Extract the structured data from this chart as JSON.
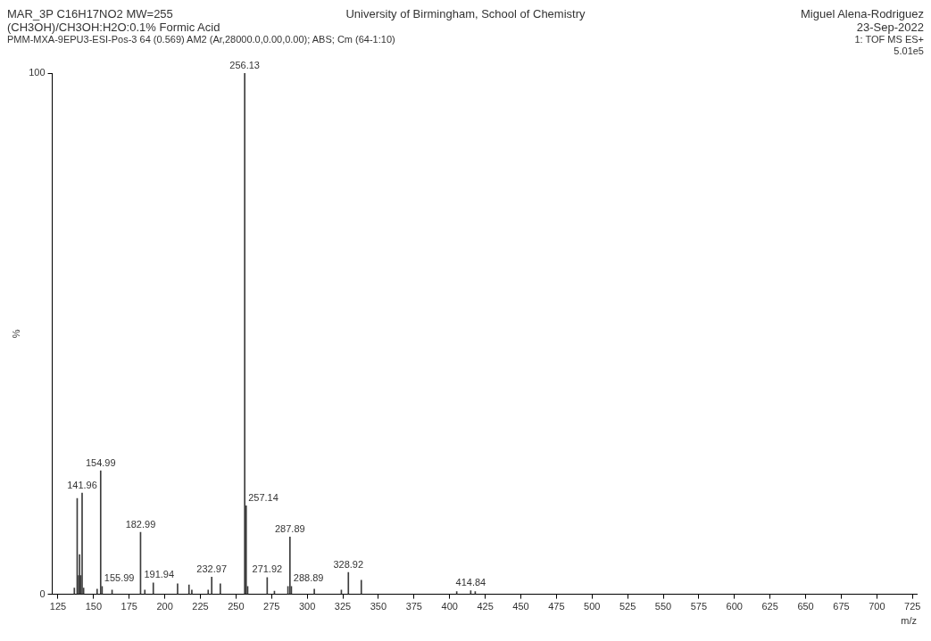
{
  "chart_data": {
    "type": "bar",
    "title": "MAR_3P C16H17NO2 MW=255",
    "subtitle": "(CH3OH)/CH3OH:H2O:0.1% Formic Acid",
    "xlabel": "m/z",
    "ylabel": "%",
    "x": [
      136.5,
      138.5,
      139.5,
      140.2,
      140.8,
      141.96,
      143,
      152.5,
      154.99,
      155.99,
      163,
      182.99,
      186,
      191.94,
      209,
      217,
      219,
      230.5,
      232.97,
      239,
      256.13,
      257.14,
      258.2,
      271.92,
      277,
      286.5,
      287.89,
      288.89,
      305,
      324,
      328.92,
      338,
      405,
      414.84,
      418
    ],
    "series": [
      {
        "color": "#3c3c3c",
        "values": [
          1.2,
          18.4,
          3.6,
          7.6,
          3.6,
          19.4,
          1.2,
          1.0,
          23.7,
          1.5,
          0.8,
          11.9,
          0.8,
          2.2,
          2.0,
          1.8,
          0.8,
          0.8,
          3.3,
          2.0,
          100,
          17,
          1.5,
          3.2,
          0.6,
          1.5,
          11,
          1.5,
          1.0,
          0.8,
          4.2,
          2.7,
          0.5,
          0.7,
          0.5
        ]
      }
    ],
    "xlim": [
      121,
      728
    ],
    "xticks": [
      125,
      150,
      175,
      200,
      225,
      250,
      275,
      300,
      325,
      350,
      375,
      400,
      425,
      450,
      475,
      500,
      525,
      550,
      575,
      600,
      625,
      650,
      675,
      700,
      725
    ],
    "ylim": [
      0,
      100
    ],
    "yticks": [
      0,
      100
    ],
    "grid": false,
    "legend": false,
    "annotations": [
      "University of Birmingham, School of Chemistry",
      "Miguel Alena-Rodriguez",
      "23-Sep-2022",
      "PMM-MXA-9EPU3-ESI-Pos-3 64 (0.569) AM2 (Ar,28000.0,0.00,0.00); ABS; Cm (64-1:10)",
      "1: TOF MS ES+",
      "5.01e5",
      {
        "text": "141.96",
        "x": 141.96,
        "y": 19.4
      },
      {
        "text": "154.99",
        "x": 154.99,
        "y": 23.7
      },
      {
        "text": "155.99",
        "x": 155.99,
        "y": 1.5
      },
      {
        "text": "182.99",
        "x": 182.99,
        "y": 11.9
      },
      {
        "text": "191.94",
        "x": 191.94,
        "y": 2.2
      },
      {
        "text": "232.97",
        "x": 232.97,
        "y": 3.3
      },
      {
        "text": "256.13",
        "x": 256.13,
        "y": 100
      },
      {
        "text": "257.14",
        "x": 257.14,
        "y": 17
      },
      {
        "text": "271.92",
        "x": 271.92,
        "y": 3.2
      },
      {
        "text": "287.89",
        "x": 287.89,
        "y": 11
      },
      {
        "text": "288.89",
        "x": 288.89,
        "y": 1.5
      },
      {
        "text": "328.92",
        "x": 328.92,
        "y": 4.2
      },
      {
        "text": "414.84",
        "x": 414.84,
        "y": 0.7
      }
    ]
  }
}
